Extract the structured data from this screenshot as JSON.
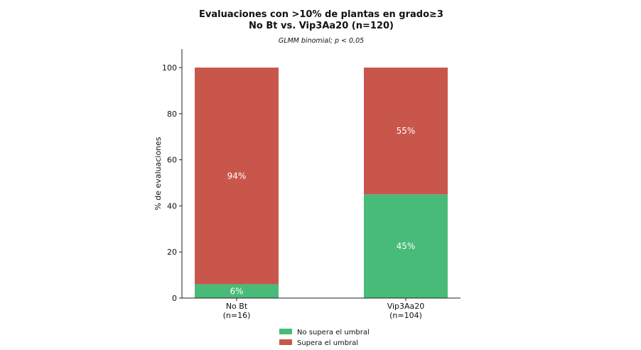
{
  "chart_data": {
    "type": "bar",
    "stacked": true,
    "title_line1": "Evaluaciones con >10% de plantas en grado≥3",
    "title_line2": "No Bt vs. Vip3Aa20 (n=120)",
    "subtitle": "GLMM binomial; p < 0,05",
    "xlabel": "",
    "ylabel": "% de evaluaciones",
    "ylim": [
      0,
      100
    ],
    "yticks": [
      "0",
      "20",
      "40",
      "60",
      "80",
      "100"
    ],
    "categories": [
      {
        "line1": "No Bt",
        "line2": "(n=16)"
      },
      {
        "line1": "Vip3Aa20",
        "line2": "(n=104)"
      }
    ],
    "series": [
      {
        "name": "No supera el umbral",
        "color": "#48bb78",
        "values": [
          6,
          45
        ],
        "labels": [
          "6%",
          "45%"
        ]
      },
      {
        "name": "Supera el umbral",
        "color": "#c9564b",
        "values": [
          94,
          55
        ],
        "labels": [
          "94%",
          "55%"
        ]
      }
    ],
    "legend_position": "bottom-center",
    "grid": false
  }
}
